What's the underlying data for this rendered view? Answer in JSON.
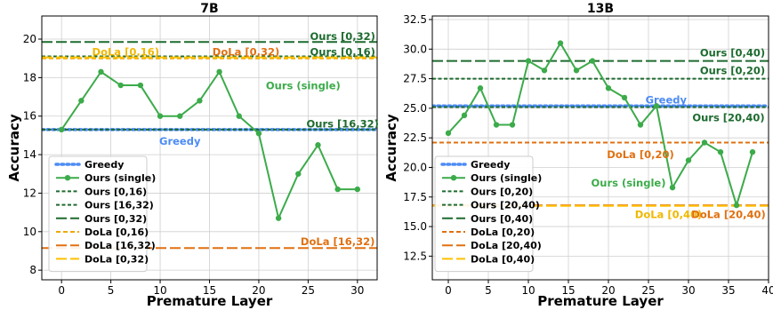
{
  "chart_data": [
    {
      "type": "line",
      "title": "7B",
      "xlabel": "Premature Layer",
      "ylabel": "Accuracy",
      "xlim": [
        -2,
        32
      ],
      "ylim": [
        7.5,
        21.2
      ],
      "xticks": [
        0,
        5,
        10,
        15,
        20,
        25,
        30
      ],
      "yticks": [
        8,
        10,
        12,
        14,
        16,
        18,
        20
      ],
      "grid": true,
      "legend_placement": "lower-left",
      "x": [
        0,
        2,
        4,
        6,
        8,
        10,
        12,
        14,
        16,
        18,
        20,
        22,
        24,
        26,
        28,
        30
      ],
      "series": [
        {
          "name": "Ours (single)",
          "kind": "line-marker",
          "color": "#3cab4a",
          "values": [
            15.3,
            16.8,
            18.3,
            17.6,
            17.6,
            16.0,
            16.0,
            16.8,
            18.3,
            16.0,
            15.1,
            10.7,
            13.0,
            14.5,
            12.2,
            12.2
          ]
        }
      ],
      "hlines": [
        {
          "name": "Greedy",
          "y": 15.3,
          "style": "dotted",
          "color": "#4c8bf5"
        },
        {
          "name": "Ours [0,16)",
          "y": 19.1,
          "style": "dense",
          "color": "#1d6b2f"
        },
        {
          "name": "Ours [16,32)",
          "y": 15.3,
          "style": "dense",
          "color": "#1d6b2f"
        },
        {
          "name": "Ours [0,32)",
          "y": 19.85,
          "style": "long",
          "color": "#1d6b2f"
        },
        {
          "name": "DoLa [0,16)",
          "y": 19.0,
          "style": "dashed",
          "color": "#f0a800"
        },
        {
          "name": "DoLa [16,32)",
          "y": 9.15,
          "style": "long",
          "color": "#e07010"
        },
        {
          "name": "DoLa [0,32)",
          "y": 19.05,
          "style": "long",
          "color": "#ffc000"
        }
      ],
      "legend": [
        {
          "label": "Greedy",
          "style": "dotted",
          "color": "#4c8bf5"
        },
        {
          "label": "Ours (single)",
          "style": "line-marker",
          "color": "#3cab4a"
        },
        {
          "label": "Ours [0,16)",
          "style": "dense",
          "color": "#1d6b2f"
        },
        {
          "label": "Ours [16,32)",
          "style": "dense",
          "color": "#1d6b2f"
        },
        {
          "label": "Ours [0,32)",
          "style": "long",
          "color": "#1d6b2f"
        },
        {
          "label": "DoLa [0,16)",
          "style": "dashed",
          "color": "#f0a800"
        },
        {
          "label": "DoLa [16,32)",
          "style": "long",
          "color": "#e07010"
        },
        {
          "label": "DoLa [0,32)",
          "style": "long",
          "color": "#ffc000"
        }
      ],
      "annotations": [
        {
          "text": "Ours [0,32)",
          "x": 28.5,
          "y": 19.95,
          "color": "#1d6b2f",
          "anchor": "middle"
        },
        {
          "text": "DoLa [0,16)",
          "x": 6.5,
          "y": 19.15,
          "color": "#f0b800",
          "anchor": "middle"
        },
        {
          "text": "DoLa [0,32)",
          "x": 18.7,
          "y": 19.15,
          "color": "#e07010",
          "anchor": "middle"
        },
        {
          "text": "Ours [0,16)",
          "x": 28.5,
          "y": 19.15,
          "color": "#1d6b2f",
          "anchor": "middle"
        },
        {
          "text": "Ours (single)",
          "x": 24.5,
          "y": 17.4,
          "color": "#3cab4a",
          "anchor": "middle"
        },
        {
          "text": "Ours [16,32)",
          "x": 28.5,
          "y": 15.4,
          "color": "#1d6b2f",
          "anchor": "middle"
        },
        {
          "text": "Greedy",
          "x": 12.0,
          "y": 14.5,
          "color": "#4c8bf5",
          "anchor": "middle"
        },
        {
          "text": "DoLa [16,32)",
          "x": 28.0,
          "y": 9.3,
          "color": "#e07010",
          "anchor": "middle"
        }
      ]
    },
    {
      "type": "line",
      "title": "13B",
      "xlabel": "Premature Layer",
      "ylabel": "Accuracy",
      "xlim": [
        -2,
        40
      ],
      "ylim": [
        10.5,
        32.8
      ],
      "xticks": [
        0,
        5,
        10,
        15,
        20,
        25,
        30,
        35,
        40
      ],
      "yticks": [
        12.5,
        15.0,
        17.5,
        20.0,
        22.5,
        25.0,
        27.5,
        30.0,
        32.5
      ],
      "ytick_labels": [
        "12.5",
        "15.0",
        "17.5",
        "20.0",
        "22.5",
        "25.0",
        "27.5",
        "30.0",
        "32.5"
      ],
      "grid": true,
      "legend_placement": "lower-left",
      "x": [
        0,
        2,
        4,
        6,
        8,
        10,
        12,
        14,
        16,
        18,
        20,
        22,
        24,
        26,
        28,
        30,
        32,
        34,
        36,
        38
      ],
      "series": [
        {
          "name": "Ours (single)",
          "kind": "line-marker",
          "color": "#3cab4a",
          "values": [
            22.9,
            24.4,
            26.7,
            23.6,
            23.6,
            29.0,
            28.2,
            30.5,
            28.2,
            29.0,
            26.7,
            25.9,
            23.6,
            25.2,
            18.3,
            20.6,
            22.1,
            21.3,
            16.8,
            21.3
          ]
        }
      ],
      "hlines": [
        {
          "name": "Greedy",
          "y": 25.2,
          "style": "dotted",
          "color": "#4c8bf5"
        },
        {
          "name": "Ours [0,20)",
          "y": 27.5,
          "style": "dense",
          "color": "#1d6b2f"
        },
        {
          "name": "Ours [20,40)",
          "y": 25.1,
          "style": "dense",
          "color": "#1d6b2f"
        },
        {
          "name": "Ours [0,40)",
          "y": 29.0,
          "style": "long",
          "color": "#1d6b2f"
        },
        {
          "name": "DoLa [0,20)",
          "y": 22.1,
          "style": "dashed",
          "color": "#e07010"
        },
        {
          "name": "DoLa [20,40)",
          "y": 16.8,
          "style": "long",
          "color": "#e07010"
        },
        {
          "name": "DoLa [0,40)",
          "y": 16.75,
          "style": "long",
          "color": "#ffc000"
        }
      ],
      "legend": [
        {
          "label": "Greedy",
          "style": "dotted",
          "color": "#4c8bf5"
        },
        {
          "label": "Ours (single)",
          "style": "line-marker",
          "color": "#3cab4a"
        },
        {
          "label": "Ours [0,20)",
          "style": "dense",
          "color": "#1d6b2f"
        },
        {
          "label": "Ours [20,40)",
          "style": "dense",
          "color": "#1d6b2f"
        },
        {
          "label": "Ours [0,40)",
          "style": "long",
          "color": "#1d6b2f"
        },
        {
          "label": "DoLa [0,20)",
          "style": "dashed",
          "color": "#e07010"
        },
        {
          "label": "DoLa [20,40)",
          "style": "long",
          "color": "#e07010"
        },
        {
          "label": "DoLa [0,40)",
          "style": "long",
          "color": "#ffc000"
        }
      ],
      "annotations": [
        {
          "text": "Ours [0,40)",
          "x": 35.5,
          "y": 29.4,
          "color": "#1d6b2f",
          "anchor": "middle"
        },
        {
          "text": "Ours [0,20)",
          "x": 35.5,
          "y": 27.9,
          "color": "#1d6b2f",
          "anchor": "middle"
        },
        {
          "text": "Greedy",
          "x": 27.2,
          "y": 25.4,
          "color": "#4c8bf5",
          "anchor": "middle"
        },
        {
          "text": "Ours [20,40)",
          "x": 35.0,
          "y": 23.9,
          "color": "#1d6b2f",
          "anchor": "middle"
        },
        {
          "text": "DoLa [0,20)",
          "x": 24.0,
          "y": 20.8,
          "color": "#e07010",
          "anchor": "middle"
        },
        {
          "text": "Ours (single)",
          "x": 22.5,
          "y": 18.4,
          "color": "#3cab4a",
          "anchor": "middle"
        },
        {
          "text": "DoLa [0,40)",
          "x": 27.5,
          "y": 15.7,
          "color": "#f0b800",
          "anchor": "middle"
        },
        {
          "text": "DoLa [20,40)",
          "x": 35.0,
          "y": 15.7,
          "color": "#e07010",
          "anchor": "middle"
        }
      ]
    }
  ]
}
